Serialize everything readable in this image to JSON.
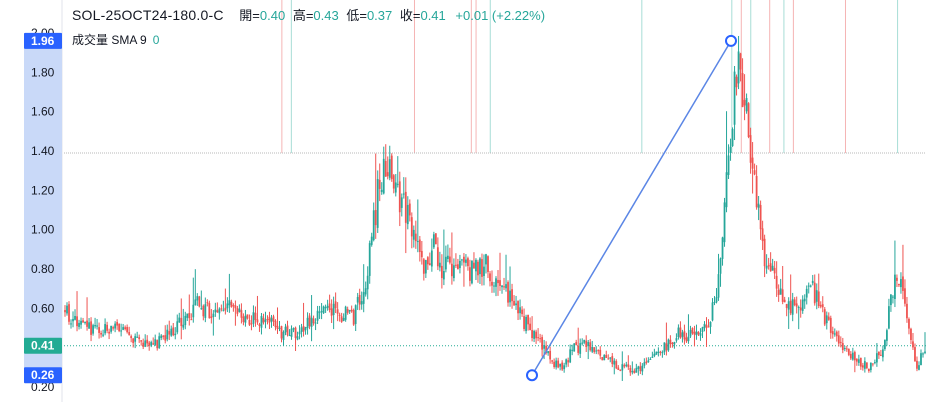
{
  "legend": {
    "symbol": "SOL-25OCT24-180.0-C",
    "open_label": "開=",
    "open_value": "0.40",
    "high_label": "高=",
    "high_value": "0.43",
    "low_label": "低=",
    "low_value": "0.37",
    "close_label": "收=",
    "close_value": "0.41",
    "change": "+0.01 (+2.22%)"
  },
  "volume_legend": {
    "label": "成交量 SMA 9",
    "value": "0"
  },
  "badges": {
    "top_label": "1.96",
    "bottom_label": "0.26",
    "last_price_label": "0.41"
  },
  "colors": {
    "up": "#26a69a",
    "down": "#ef5350",
    "trendline": "#5b86e5",
    "axis_highlight": "#c9d9f8",
    "badge_blue": "#2962ff",
    "last_price_green": "#22ab94",
    "level_line": "#b8b8b8",
    "volume_up": "#a7ddd6",
    "volume_down": "#f5b4b4"
  },
  "chart_data": {
    "type": "candlestick",
    "title": "SOL-25OCT24-180.0-C",
    "ylim": [
      0.18,
      2.0
    ],
    "y_ticks": [
      0.2,
      0.4,
      0.6,
      0.8,
      1.0,
      1.2,
      1.4,
      1.6,
      1.8,
      2.0
    ],
    "y_tick_labels": [
      "0.20",
      "0.40",
      "0.60",
      "0.80",
      "1.00",
      "1.20",
      "1.40",
      "1.60",
      "1.80",
      "2.00"
    ],
    "last_price": 0.41,
    "horizontal_level": 1.39,
    "trendline": {
      "from_price": 0.26,
      "to_price": 1.96
    },
    "price_path": [
      [
        0,
        0.58
      ],
      [
        3,
        0.52
      ],
      [
        6,
        0.48
      ],
      [
        10,
        0.5
      ],
      [
        14,
        0.46
      ],
      [
        18,
        0.42
      ],
      [
        21,
        0.44
      ],
      [
        24,
        0.52
      ],
      [
        28,
        0.62
      ],
      [
        31,
        0.58
      ],
      [
        35,
        0.6
      ],
      [
        39,
        0.55
      ],
      [
        43,
        0.52
      ],
      [
        46,
        0.48
      ],
      [
        49,
        0.46
      ],
      [
        52,
        0.54
      ],
      [
        55,
        0.62
      ],
      [
        58,
        0.58
      ],
      [
        61,
        0.55
      ],
      [
        64,
        0.78
      ],
      [
        66,
        1.15
      ],
      [
        68,
        1.38
      ],
      [
        70,
        1.22
      ],
      [
        72,
        1.1
      ],
      [
        74,
        0.92
      ],
      [
        76,
        0.82
      ],
      [
        78,
        0.92
      ],
      [
        80,
        0.8
      ],
      [
        83,
        0.82
      ],
      [
        86,
        0.78
      ],
      [
        89,
        0.82
      ],
      [
        92,
        0.72
      ],
      [
        95,
        0.62
      ],
      [
        98,
        0.5
      ],
      [
        101,
        0.42
      ],
      [
        103,
        0.32
      ],
      [
        105,
        0.3
      ],
      [
        108,
        0.4
      ],
      [
        111,
        0.42
      ],
      [
        114,
        0.34
      ],
      [
        118,
        0.3
      ],
      [
        121,
        0.28
      ],
      [
        124,
        0.33
      ],
      [
        127,
        0.4
      ],
      [
        130,
        0.48
      ],
      [
        133,
        0.45
      ],
      [
        136,
        0.52
      ],
      [
        138,
        0.65
      ],
      [
        140,
        1.2
      ],
      [
        142,
        1.8
      ],
      [
        144,
        1.72
      ],
      [
        146,
        1.2
      ],
      [
        148,
        0.85
      ],
      [
        150,
        0.78
      ],
      [
        152,
        0.62
      ],
      [
        155,
        0.6
      ],
      [
        158,
        0.7
      ],
      [
        161,
        0.55
      ],
      [
        164,
        0.4
      ],
      [
        167,
        0.35
      ],
      [
        170,
        0.3
      ],
      [
        173,
        0.4
      ],
      [
        176,
        0.78
      ],
      [
        178,
        0.6
      ],
      [
        180,
        0.3
      ],
      [
        182,
        0.4
      ]
    ],
    "volume_spikes": [
      {
        "x": 46,
        "dir": "down"
      },
      {
        "x": 48,
        "dir": "up"
      },
      {
        "x": 74,
        "dir": "down"
      },
      {
        "x": 86,
        "dir": "down"
      },
      {
        "x": 87,
        "dir": "down"
      },
      {
        "x": 90,
        "dir": "up"
      },
      {
        "x": 122,
        "dir": "up"
      },
      {
        "x": 141,
        "dir": "up"
      },
      {
        "x": 143,
        "dir": "down"
      },
      {
        "x": 145,
        "dir": "up"
      },
      {
        "x": 149,
        "dir": "down"
      },
      {
        "x": 152,
        "dir": "up"
      },
      {
        "x": 154,
        "dir": "down"
      },
      {
        "x": 165,
        "dir": "down"
      },
      {
        "x": 176,
        "dir": "up"
      }
    ]
  }
}
